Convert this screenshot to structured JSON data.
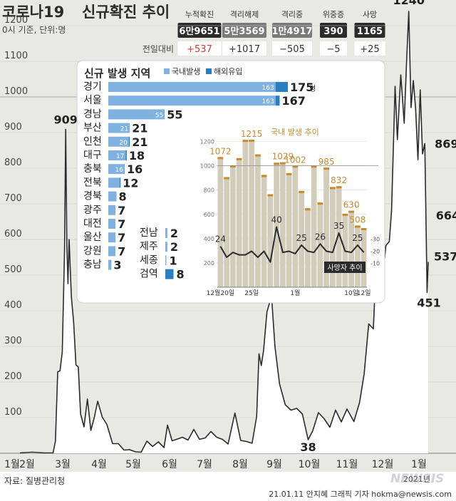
{
  "header": {
    "title_a": "코로나19",
    "title_b": "신규확진 추이",
    "subtitle": "0시 기준, 단위:명",
    "change_label": "전일대비"
  },
  "stats": [
    {
      "label": "누적확진",
      "value": "6만9651",
      "delta": "+537"
    },
    {
      "label": "격리해제",
      "value": "5만3569",
      "delta": "+1017"
    },
    {
      "label": "격리중",
      "value": "1만4917",
      "delta": "−505"
    },
    {
      "label": "위중증",
      "value": "390",
      "delta": "−5"
    },
    {
      "label": "사망",
      "value": "1165",
      "delta": "+25"
    }
  ],
  "colors": {
    "dark": "#2b2b2b",
    "muted": "#8a8a8a",
    "red": "#d63a2e",
    "domestic": "#7fb2e0",
    "overseas": "#2a7fc0",
    "bar_area": "#d2cdbb",
    "domestic_line": "#c98a2e",
    "footer_bg": "#ffffff"
  },
  "footer": {
    "source": "자료: 질병관리청",
    "credit": "21.01.11 안지혜 그래픽 기자 hokma@newsis.com",
    "logo": "NEWSIS",
    "year_label": "2021년"
  },
  "chart_data": [
    {
      "type": "line",
      "title": "코로나19 신규확진 추이",
      "ylim": [
        0,
        1300
      ],
      "yticks": [
        100,
        200,
        300,
        400,
        500,
        600,
        700,
        800,
        900,
        1000,
        1100,
        1200
      ],
      "x_tick_labels": [
        "1월",
        "2월",
        "3월",
        "4월",
        "5월",
        "6월",
        "7월",
        "8월",
        "9월",
        "10월",
        "11월",
        "12월",
        "1월"
      ],
      "annotations": [
        {
          "date": "2020-02-29",
          "value": 909,
          "label": "909"
        },
        {
          "date": "2020-09-28",
          "value": 38,
          "label": "38"
        },
        {
          "date": "2020-12-25",
          "value": 1240,
          "label": "1240"
        },
        {
          "date": "2021-01-08",
          "value": 869,
          "label": "869"
        },
        {
          "date": "2021-01-09",
          "value": 664,
          "label": "664"
        },
        {
          "date": "2021-01-10",
          "value": 451,
          "label": "451"
        },
        {
          "date": "2021-01-11",
          "value": 537,
          "label": "537"
        }
      ],
      "series": [
        {
          "values": [
            [
              "2020-01-20",
              1
            ],
            [
              "2020-01-31",
              3
            ],
            [
              "2020-02-10",
              1
            ],
            [
              "2020-02-18",
              1
            ],
            [
              "2020-02-20",
              34
            ],
            [
              "2020-02-22",
              229
            ],
            [
              "2020-02-24",
              231
            ],
            [
              "2020-02-26",
              284
            ],
            [
              "2020-02-28",
              571
            ],
            [
              "2020-02-29",
              909
            ],
            [
              "2020-03-01",
              586
            ],
            [
              "2020-03-02",
              476
            ],
            [
              "2020-03-03",
              600
            ],
            [
              "2020-03-05",
              438
            ],
            [
              "2020-03-07",
              367
            ],
            [
              "2020-03-09",
              248
            ],
            [
              "2020-03-11",
              242
            ],
            [
              "2020-03-13",
              110
            ],
            [
              "2020-03-16",
              74
            ],
            [
              "2020-03-19",
              152
            ],
            [
              "2020-03-22",
              64
            ],
            [
              "2020-03-25",
              100
            ],
            [
              "2020-03-28",
              146
            ],
            [
              "2020-04-01",
              101
            ],
            [
              "2020-04-05",
              81
            ],
            [
              "2020-04-10",
              27
            ],
            [
              "2020-04-15",
              27
            ],
            [
              "2020-04-20",
              9
            ],
            [
              "2020-04-25",
              10
            ],
            [
              "2020-04-30",
              4
            ],
            [
              "2020-05-05",
              3
            ],
            [
              "2020-05-10",
              34
            ],
            [
              "2020-05-15",
              19
            ],
            [
              "2020-05-20",
              32
            ],
            [
              "2020-05-25",
              16
            ],
            [
              "2020-05-28",
              79
            ],
            [
              "2020-06-01",
              35
            ],
            [
              "2020-06-05",
              39
            ],
            [
              "2020-06-10",
              45
            ],
            [
              "2020-06-15",
              37
            ],
            [
              "2020-06-20",
              67
            ],
            [
              "2020-06-25",
              39
            ],
            [
              "2020-06-30",
              43
            ],
            [
              "2020-07-05",
              61
            ],
            [
              "2020-07-10",
              45
            ],
            [
              "2020-07-15",
              39
            ],
            [
              "2020-07-20",
              26
            ],
            [
              "2020-07-26",
              113
            ],
            [
              "2020-07-31",
              36
            ],
            [
              "2020-08-05",
              33
            ],
            [
              "2020-08-10",
              28
            ],
            [
              "2020-08-14",
              103
            ],
            [
              "2020-08-16",
              279
            ],
            [
              "2020-08-18",
              246
            ],
            [
              "2020-08-20",
              288
            ],
            [
              "2020-08-23",
              397
            ],
            [
              "2020-08-27",
              441
            ],
            [
              "2020-08-30",
              299
            ],
            [
              "2020-09-03",
              195
            ],
            [
              "2020-09-08",
              136
            ],
            [
              "2020-09-13",
              121
            ],
            [
              "2020-09-18",
              126
            ],
            [
              "2020-09-23",
              110
            ],
            [
              "2020-09-28",
              38
            ],
            [
              "2020-10-02",
              63
            ],
            [
              "2020-10-07",
              114
            ],
            [
              "2020-10-12",
              97
            ],
            [
              "2020-10-17",
              73
            ],
            [
              "2020-10-22",
              121
            ],
            [
              "2020-10-27",
              88
            ],
            [
              "2020-11-01",
              124
            ],
            [
              "2020-11-07",
              89
            ],
            [
              "2020-11-12",
              143
            ],
            [
              "2020-11-16",
              223
            ],
            [
              "2020-11-20",
              363
            ],
            [
              "2020-11-24",
              349
            ],
            [
              "2020-11-27",
              569
            ],
            [
              "2020-12-01",
              451
            ],
            [
              "2020-12-05",
              583
            ],
            [
              "2020-12-08",
              594
            ],
            [
              "2020-12-10",
              682
            ],
            [
              "2020-12-13",
              1030
            ],
            [
              "2020-12-15",
              880
            ],
            [
              "2020-12-18",
              1062
            ],
            [
              "2020-12-21",
              926
            ],
            [
              "2020-12-23",
              1092
            ],
            [
              "2020-12-25",
              1240
            ],
            [
              "2020-12-27",
              970
            ],
            [
              "2020-12-29",
              1046
            ],
            [
              "2020-12-31",
              967
            ],
            [
              "2021-01-02",
              824
            ],
            [
              "2021-01-04",
              1020
            ],
            [
              "2021-01-06",
              840
            ],
            [
              "2021-01-08",
              869
            ],
            [
              "2021-01-09",
              664
            ],
            [
              "2021-01-10",
              451
            ],
            [
              "2021-01-11",
              537
            ]
          ]
        }
      ]
    },
    {
      "type": "bar",
      "title": "신규 발생 지역",
      "legend": [
        "국내발생",
        "해외유입"
      ],
      "unit": "명",
      "column_1": [
        {
          "region": "경기",
          "domestic": 163,
          "overseas": 12,
          "total": 175
        },
        {
          "region": "서울",
          "domestic": 163,
          "overseas": 4,
          "total": 167
        },
        {
          "region": "경남",
          "domestic": 55,
          "overseas": 0,
          "total": 55
        },
        {
          "region": "부산",
          "domestic": 21,
          "overseas": 0,
          "total": 21
        },
        {
          "region": "인천",
          "domestic": 20,
          "overseas": 1,
          "total": 21
        },
        {
          "region": "대구",
          "domestic": 17,
          "overseas": 1,
          "total": 18
        },
        {
          "region": "충북",
          "domestic": 16,
          "overseas": 0,
          "total": 16
        },
        {
          "region": "전북",
          "domestic": 11,
          "overseas": 1,
          "total": 12
        },
        {
          "region": "경북",
          "domestic": 8,
          "overseas": 0,
          "total": 8
        },
        {
          "region": "광주",
          "domestic": 7,
          "overseas": 0,
          "total": 7
        },
        {
          "region": "대전",
          "domestic": 7,
          "overseas": 0,
          "total": 7
        },
        {
          "region": "울산",
          "domestic": 7,
          "overseas": 0,
          "total": 7
        },
        {
          "region": "강원",
          "domestic": 7,
          "overseas": 0,
          "total": 7
        },
        {
          "region": "충남",
          "domestic": 3,
          "overseas": 0,
          "total": 3
        }
      ],
      "column_2": [
        {
          "region": "전남",
          "domestic": 2,
          "overseas": 0,
          "total": 2
        },
        {
          "region": "제주",
          "domestic": 2,
          "overseas": 0,
          "total": 2
        },
        {
          "region": "세종",
          "domestic": 1,
          "overseas": 0,
          "total": 1
        },
        {
          "region": "검역",
          "domestic": 0,
          "overseas": 8,
          "total": 8
        }
      ]
    },
    {
      "type": "bar",
      "title": "국내 발생 추이",
      "ylim": [
        0,
        1250
      ],
      "yticks": [
        200,
        400,
        600,
        800,
        1000,
        1200
      ],
      "x_tick_labels": [
        "12월20일",
        "25일",
        "1월",
        "10일",
        "12일"
      ],
      "x": [
        "12.20",
        "12.21",
        "12.22",
        "12.23",
        "12.24",
        "12.25",
        "12.26",
        "12.27",
        "12.28",
        "12.29",
        "12.30",
        "12.31",
        "1.1",
        "1.2",
        "1.3",
        "1.4",
        "1.5",
        "1.6",
        "1.7",
        "1.8",
        "1.9",
        "1.10",
        "1.11",
        "1.12"
      ],
      "series": [
        {
          "values": [
            1072,
            907,
            1004,
            1063,
            1214,
            1215,
            1094,
            925,
            766,
            1025,
            1029,
            940,
            1002,
            793,
            650,
            1002,
            697,
            985,
            825,
            832,
            605,
            630,
            508,
            487
          ],
          "labels": {
            "0": "1072",
            "5": "1215",
            "10": "1029",
            "12": "1002",
            "17": "985",
            "19": "832",
            "21": "630",
            "22": "508"
          }
        }
      ]
    },
    {
      "type": "line",
      "title": "사망자 추이",
      "ylim": [
        5,
        45
      ],
      "yticks": [
        10,
        20,
        30
      ],
      "x": [
        "12.20",
        "12.21",
        "12.22",
        "12.23",
        "12.24",
        "12.25",
        "12.26",
        "12.27",
        "12.28",
        "12.29",
        "12.30",
        "12.31",
        "1.1",
        "1.2",
        "1.3",
        "1.4",
        "1.5",
        "1.6",
        "1.7",
        "1.8",
        "1.9",
        "1.10",
        "1.11",
        "1.12"
      ],
      "series": [
        {
          "values": [
            24,
            15,
            19,
            17,
            17,
            20,
            15,
            20,
            11,
            40,
            19,
            20,
            18,
            25,
            20,
            19,
            26,
            20,
            19,
            35,
            20,
            19,
            25,
            19
          ],
          "labels": {
            "0": "24",
            "9": "40",
            "13": "25",
            "16": "26",
            "19": "35",
            "22": "25"
          }
        }
      ]
    }
  ]
}
